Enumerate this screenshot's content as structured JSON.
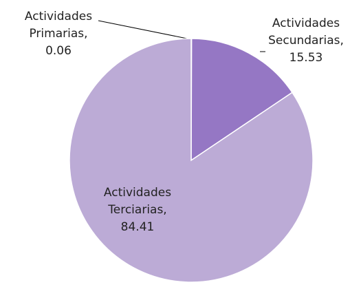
{
  "chart_data": {
    "type": "pie",
    "categories": [
      "Actividades Primarias,",
      "Actividades Secundarias,",
      "Actividades Terciarias,"
    ],
    "values": [
      0.06,
      15.53,
      84.41
    ],
    "colors": [
      "#cdbfe0",
      "#9577c4",
      "#bcabd6"
    ]
  }
}
